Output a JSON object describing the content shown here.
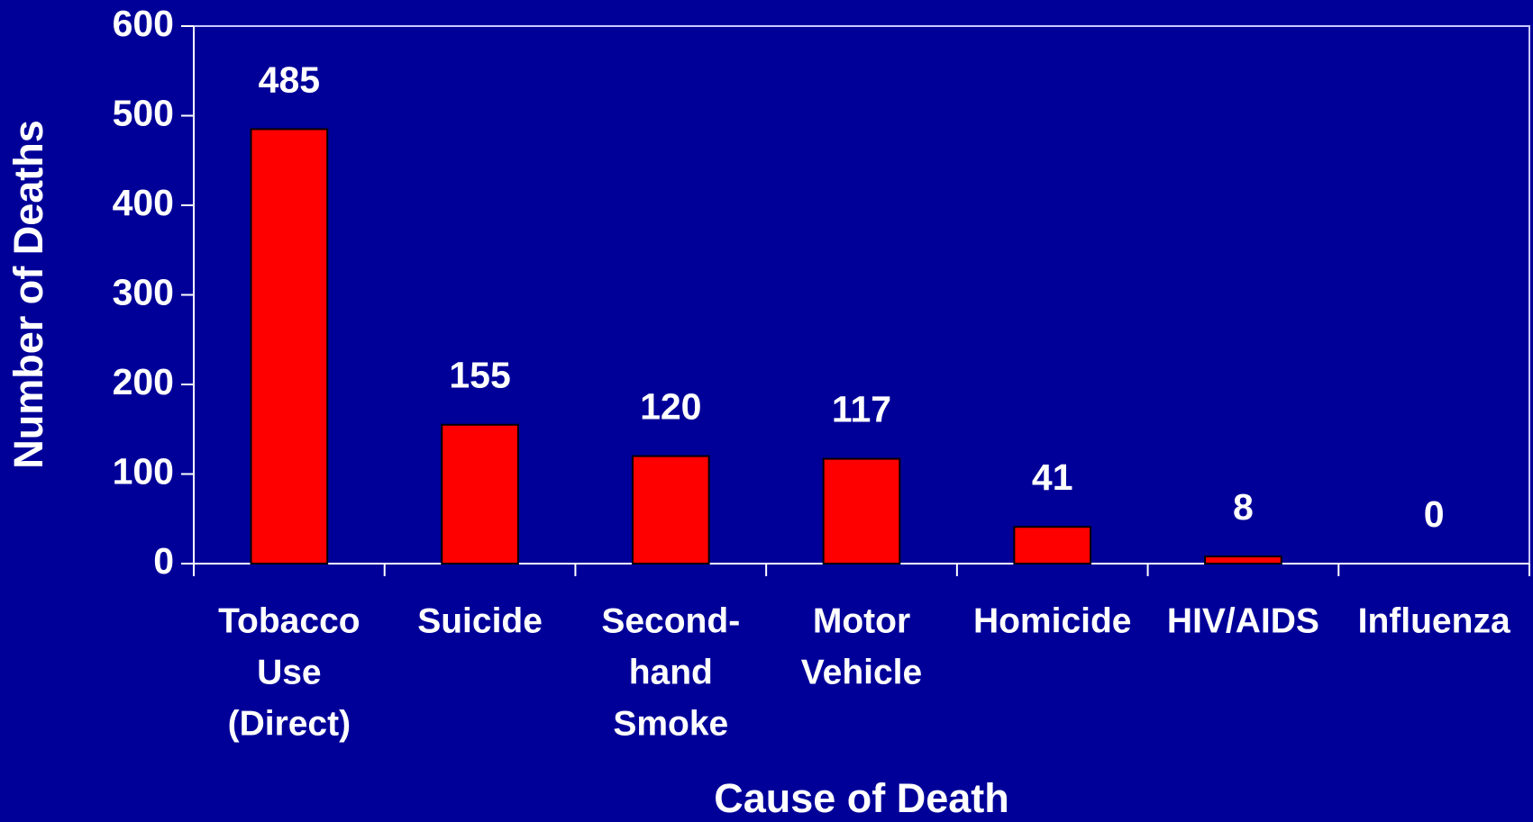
{
  "chart_data": {
    "type": "bar",
    "x_label": "Cause of Death",
    "y_label": "Number of Deaths",
    "categories": [
      [
        "Tobacco",
        "Use",
        "(Direct)"
      ],
      [
        "Suicide"
      ],
      [
        "Second-",
        "hand",
        "Smoke"
      ],
      [
        "Motor",
        "Vehicle"
      ],
      [
        "Homicide"
      ],
      [
        "HIV/AIDS"
      ],
      [
        "Influenza"
      ]
    ],
    "values": [
      485,
      155,
      120,
      117,
      41,
      8,
      0
    ],
    "color": "#ff0000",
    "ylim": [
      0,
      600
    ],
    "yticks": [
      0,
      100,
      200,
      300,
      400,
      500,
      600
    ],
    "grid": false
  }
}
